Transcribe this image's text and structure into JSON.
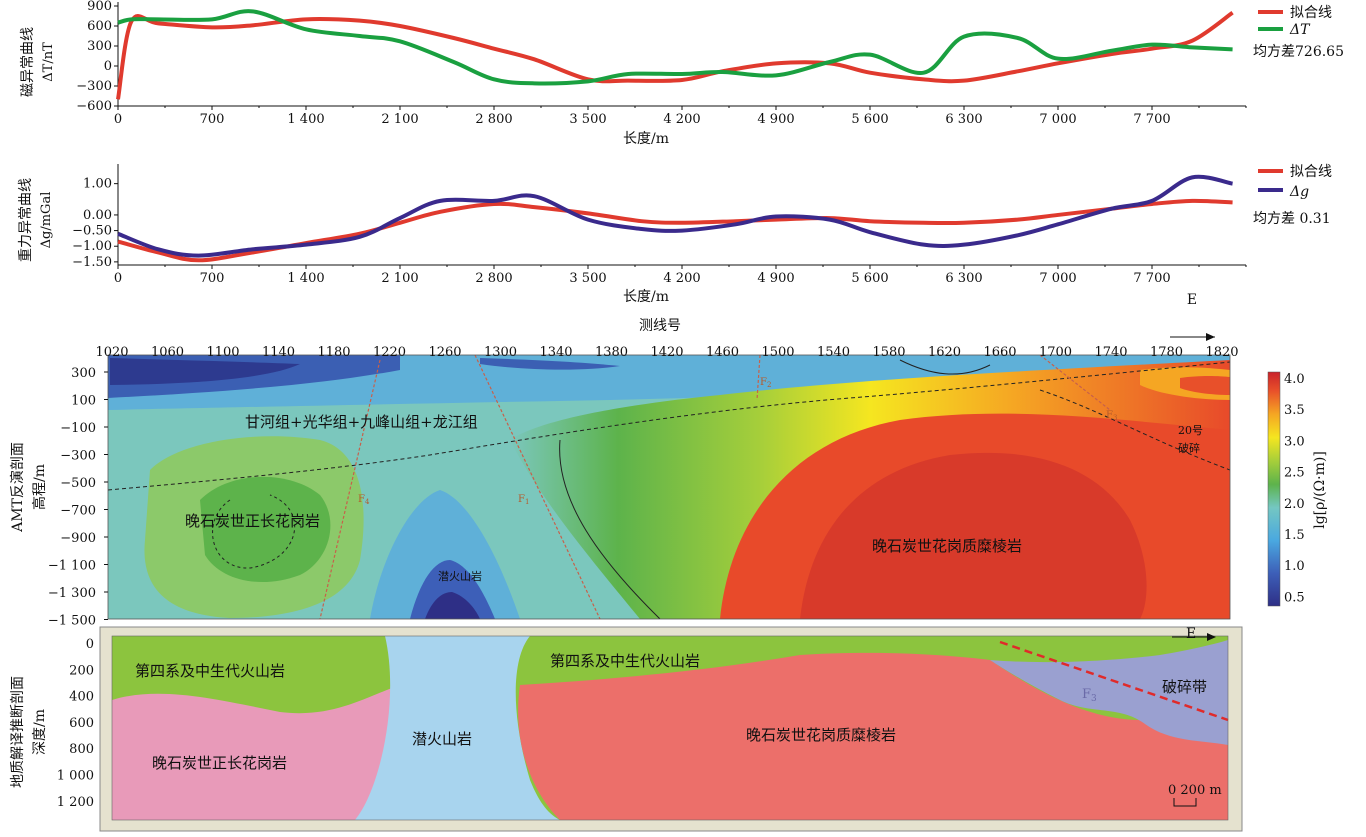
{
  "panels": {
    "magnetic": {
      "ylabel": "磁异常曲线",
      "unit": "ΔT/nT",
      "xlabel": "长度/m",
      "yticks": [
        900,
        600,
        300,
        0,
        -300,
        -600
      ],
      "xticks": [
        0,
        700,
        1400,
        2100,
        2800,
        3500,
        4200,
        4900,
        5600,
        6300,
        7000,
        7700
      ],
      "xtick_labels": [
        "0",
        "700",
        "1 400",
        "2 100",
        "2 800",
        "3 500",
        "4 200",
        "4 900",
        "5 600",
        "6 300",
        "7 000",
        "7 700"
      ],
      "ylim": [
        -600,
        900
      ],
      "legend": {
        "fit": "拟合线",
        "obs": "ΔT"
      },
      "rmse_text": "均方差726.65",
      "colors": {
        "fit": "#e03a2e",
        "obs": "#1aa040"
      }
    },
    "gravity": {
      "ylabel": "重力异常曲线",
      "unit": "Δg/mGal",
      "xlabel": "长度/m",
      "yticks": [
        1.0,
        0.0,
        -0.5,
        -1.0,
        -1.5
      ],
      "ytick_labels": [
        "1.00",
        "0.00",
        "−0.50",
        "−1.00",
        "−1.50"
      ],
      "xticks": [
        0,
        700,
        1400,
        2100,
        2800,
        3500,
        4200,
        4900,
        5600,
        6300,
        7000,
        7700
      ],
      "xtick_labels": [
        "0",
        "700",
        "1 400",
        "2 100",
        "2 800",
        "3 500",
        "4 200",
        "4 900",
        "5 600",
        "6 300",
        "7 000",
        "7 700"
      ],
      "ylim": [
        -1.6,
        1.5
      ],
      "legend": {
        "fit": "拟合线",
        "obs": "Δg"
      },
      "rmse_text": "均方差 0.31",
      "east": "E",
      "colors": {
        "fit": "#e03a2e",
        "obs": "#3a2a8c"
      }
    },
    "amt": {
      "title": "测线号",
      "ylabel": "AMT反演剖面",
      "unit": "高程/m",
      "station_ticks": [
        "1020",
        "1060",
        "1100",
        "1140",
        "1180",
        "1220",
        "1260",
        "1300",
        "1340",
        "1380",
        "1420",
        "1460",
        "1500",
        "1540",
        "1580",
        "1620",
        "1660",
        "1700",
        "1740",
        "1780",
        "1820"
      ],
      "yticks": [
        "300",
        "100",
        "−100",
        "−300",
        "−500",
        "−700",
        "−900",
        "−1 100",
        "−1 300",
        "−1 500"
      ],
      "colorbar_title": "lg[ρ/(Ω·m)]",
      "colorbar_ticks": [
        "4.0",
        "3.5",
        "3.0",
        "2.5",
        "2.0",
        "1.5",
        "1.0",
        "0.5"
      ],
      "labels": {
        "formation": "甘河组+光华组+九峰山组+龙江组",
        "granite_left": "晚石炭世正长花岗岩",
        "volcanic": "潜火山岩",
        "granite_right": "晚石炭世花岗质糜棱岩",
        "fracture": "20号",
        "fracture2": "破碎",
        "f1": "F",
        "f2": "F",
        "f3": "F",
        "f4": "F",
        "f1_sub": "1",
        "f2_sub": "2",
        "f3_sub": "3",
        "f4_sub": "4"
      }
    },
    "geology": {
      "ylabel": "地质解译推断剖面",
      "unit": "深度/m",
      "yticks": [
        "0",
        "200",
        "400",
        "600",
        "800",
        "1 000",
        "1 200"
      ],
      "east": "E",
      "labels": {
        "quaternary_left": "第四系及中生代火山岩",
        "quaternary_right": "第四系及中生代火山岩",
        "granite_left": "晚石炭世正长花岗岩",
        "volcanic": "潜火山岩",
        "granite_right": "晚石炭世花岗质糜棱岩",
        "fracture_zone": "破碎带",
        "f3": "F",
        "f3_sub": "3"
      },
      "scale": "0  200 m"
    }
  },
  "chart_data": [
    {
      "type": "line",
      "title": "",
      "xlabel": "长度/m",
      "ylabel": "ΔT/nT",
      "xlim": [
        0,
        8400
      ],
      "ylim": [
        -600,
        900
      ],
      "x": [
        0,
        100,
        300,
        700,
        1000,
        1400,
        1800,
        2100,
        2500,
        2800,
        3100,
        3500,
        3800,
        4200,
        4500,
        4900,
        5300,
        5600,
        6000,
        6300,
        6700,
        7000,
        7400,
        7700,
        8000,
        8300
      ],
      "series": [
        {
          "name": "拟合线",
          "values": [
            -500,
            670,
            640,
            580,
            610,
            700,
            680,
            600,
            420,
            260,
            100,
            -200,
            -220,
            -210,
            -80,
            40,
            40,
            -100,
            -200,
            -220,
            -80,
            40,
            180,
            260,
            380,
            800
          ]
        },
        {
          "name": "ΔT",
          "values": [
            650,
            700,
            700,
            700,
            820,
            550,
            450,
            370,
            60,
            -200,
            -260,
            -230,
            -120,
            -120,
            -90,
            -140,
            60,
            170,
            -100,
            440,
            420,
            110,
            230,
            320,
            280,
            250
          ]
        }
      ]
    },
    {
      "type": "line",
      "title": "",
      "xlabel": "长度/m",
      "ylabel": "Δg/mGal",
      "xlim": [
        0,
        8400
      ],
      "ylim": [
        -1.6,
        1.5
      ],
      "x": [
        0,
        300,
        600,
        1000,
        1400,
        1800,
        2100,
        2400,
        2800,
        3100,
        3500,
        3900,
        4200,
        4600,
        4900,
        5300,
        5600,
        6000,
        6300,
        6700,
        7000,
        7400,
        7700,
        8000,
        8300
      ],
      "series": [
        {
          "name": "拟合线",
          "values": [
            -0.85,
            -1.2,
            -1.45,
            -1.2,
            -0.9,
            -0.6,
            -0.25,
            0.1,
            0.35,
            0.25,
            0.05,
            -0.2,
            -0.25,
            -0.2,
            -0.15,
            -0.1,
            -0.2,
            -0.25,
            -0.25,
            -0.15,
            0.0,
            0.2,
            0.35,
            0.45,
            0.4
          ]
        },
        {
          "name": "Δg",
          "values": [
            -0.6,
            -1.1,
            -1.3,
            -1.1,
            -0.95,
            -0.7,
            -0.1,
            0.45,
            0.45,
            0.6,
            -0.15,
            -0.45,
            -0.5,
            -0.3,
            -0.05,
            -0.15,
            -0.55,
            -0.95,
            -0.95,
            -0.65,
            -0.3,
            0.2,
            0.45,
            1.2,
            1.0
          ]
        }
      ]
    }
  ]
}
